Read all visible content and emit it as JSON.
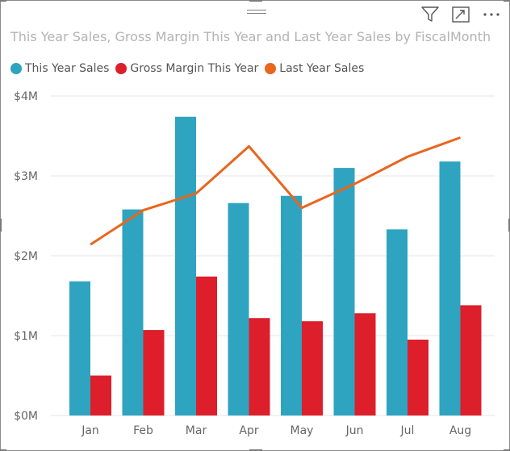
{
  "visual": {
    "title": "This Year Sales, Gross Margin This Year and Last Year Sales by FiscalMonth",
    "toolbar": [
      {
        "icon": "filter-icon"
      },
      {
        "icon": "focus-mode-icon"
      },
      {
        "icon": "more-options-icon"
      }
    ]
  },
  "colors": {
    "this_year_sales": "#2ea4c0",
    "gross_margin": "#dc1f2b",
    "last_year_sales": "#e8661e"
  },
  "chart_data": {
    "type": "bar",
    "categories": [
      "Jan",
      "Feb",
      "Mar",
      "Apr",
      "May",
      "Jun",
      "Jul",
      "Aug"
    ],
    "series": [
      {
        "name": "This Year Sales",
        "type": "bar",
        "values": [
          1.68,
          2.58,
          3.74,
          2.66,
          2.75,
          3.1,
          2.33,
          3.18
        ]
      },
      {
        "name": "Gross Margin This Year",
        "type": "bar",
        "values": [
          0.5,
          1.07,
          1.74,
          1.22,
          1.18,
          1.28,
          0.95,
          1.38
        ]
      },
      {
        "name": "Last Year Sales",
        "type": "line",
        "values": [
          2.14,
          2.57,
          2.78,
          3.37,
          2.6,
          2.9,
          3.24,
          3.48
        ]
      }
    ],
    "yticks": [
      "$0M",
      "$1M",
      "$2M",
      "$3M",
      "$4M"
    ],
    "ylim": [
      0,
      4
    ],
    "yunit": "millions USD",
    "legend_position": "top-left",
    "grid": true
  }
}
